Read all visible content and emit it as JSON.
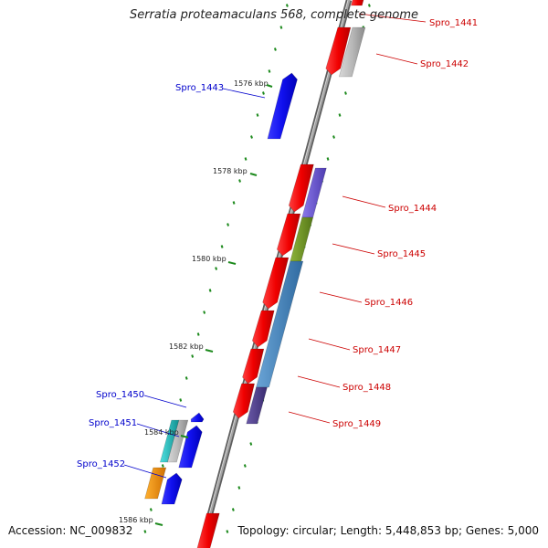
{
  "title": "Serratia proteamaculans 568, complete genome",
  "footer": {
    "accession": "Accession: NC_009832",
    "summary": "Topology: circular; Length: 5,448,853 bp; Genes: 5,000"
  },
  "colors": {
    "backbone": "#8c8c8c",
    "tick": "#1d8a1d",
    "left_label": "#0000cc",
    "right_label": "#cc0000"
  },
  "kbp_labels": [
    "1576 kbp",
    "1578 kbp",
    "1580 kbp",
    "1582 kbp",
    "1584 kbp",
    "1586 kbp"
  ],
  "gene_labels": {
    "spro_1441": "Spro_1441",
    "spro_1442": "Spro_1442",
    "spro_1443": "Spro_1443",
    "spro_1444": "Spro_1444",
    "spro_1445": "Spro_1445",
    "spro_1446": "Spro_1446",
    "spro_1447": "Spro_1447",
    "spro_1448": "Spro_1448",
    "spro_1449": "Spro_1449",
    "spro_1450": "Spro_1450",
    "spro_1451": "Spro_1451",
    "spro_1452": "Spro_1452"
  }
}
